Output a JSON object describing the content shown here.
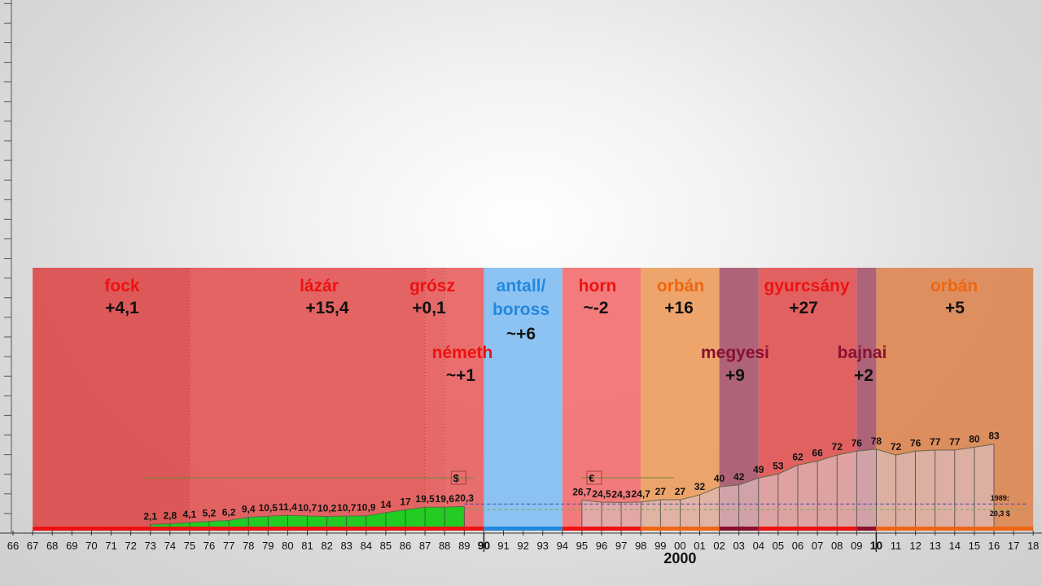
{
  "chart_data": {
    "type": "area",
    "x_range": [
      1966,
      2018
    ],
    "y_range": [
      0,
      100
    ],
    "governments": [
      {
        "name": "fock",
        "value": "+4,1",
        "start": 1967,
        "end": 1975,
        "color": "#dc5050",
        "name_color": "#ee1111"
      },
      {
        "name": "lázár",
        "value": "+15,4",
        "start": 1975,
        "end": 1987,
        "color": "#e35c5c",
        "name_color": "#ee1111"
      },
      {
        "name": "grósz",
        "value": "+0,1",
        "start": 1987,
        "end": 1988,
        "color": "#e56262",
        "name_color": "#ee1111"
      },
      {
        "name": "németh",
        "value": "~+1",
        "start": 1988,
        "end": 1990,
        "color": "#e86666",
        "name_color": "#ee1111"
      },
      {
        "name": "antall/\nboross",
        "value": "~+6",
        "start": 1990,
        "end": 1994,
        "color": "#87c0f2",
        "name_color": "#2288dd"
      },
      {
        "name": "horn",
        "value": "~-2",
        "start": 1994,
        "end": 1998,
        "color": "#f27474",
        "name_color": "#ee1111"
      },
      {
        "name": "orbán",
        "value": "+16",
        "start": 1998,
        "end": 2002,
        "color": "#eca064",
        "name_color": "#ee6611"
      },
      {
        "name": "megyesi",
        "value": "+9",
        "start": 2002,
        "end": 2004,
        "color": "#ab5c72",
        "name_color": "#8a1030"
      },
      {
        "name": "gyurcsány",
        "value": "+27",
        "start": 2004,
        "end": 2009,
        "color": "#e05a5a",
        "name_color": "#ee1111"
      },
      {
        "name": "bajnai",
        "value": "+2",
        "start": 2009,
        "end": 2010,
        "color": "#ab5c72",
        "name_color": "#8a1030"
      },
      {
        "name": "orbán",
        "value": "+5",
        "start": 2010,
        "end": 2018,
        "color": "#dd8a58",
        "name_color": "#ee6611"
      }
    ],
    "series": [
      {
        "name": "dollar",
        "fill": "#22cc22",
        "x": [
          1973,
          1974,
          1975,
          1976,
          1977,
          1978,
          1979,
          1980,
          1981,
          1982,
          1983,
          1984,
          1985,
          1986,
          1987,
          1988,
          1989
        ],
        "labels": [
          "2,1",
          "2,8",
          "4,1",
          "5,2",
          "6,2",
          "9,4",
          "10,5",
          "11,4",
          "10,7",
          "10,2",
          "10,7",
          "10,9",
          "14",
          "17",
          "19,5",
          "19,6",
          "20,3"
        ],
        "values": [
          2.1,
          2.8,
          4.1,
          5.2,
          6.2,
          9.4,
          10.5,
          11.4,
          10.7,
          10.2,
          10.7,
          10.9,
          14,
          17,
          19.5,
          19.6,
          20.3
        ]
      },
      {
        "name": "euro",
        "fill": "#dcb8b8",
        "x": [
          1995,
          1996,
          1997,
          1998,
          1999,
          2000,
          2001,
          2002,
          2003,
          2004,
          2005,
          2006,
          2007,
          2008,
          2009,
          2010,
          2011,
          2012,
          2013,
          2014,
          2015,
          2016
        ],
        "labels": [
          "26,7",
          "24,5",
          "24,3",
          "24,7",
          "27",
          "27",
          "32",
          "40",
          "42",
          "49",
          "53",
          "62",
          "66",
          "72",
          "76",
          "78",
          "72",
          "76",
          "77",
          "77",
          "80",
          "83"
        ],
        "values": [
          26.7,
          24.5,
          24.3,
          24.7,
          27,
          27,
          32,
          40,
          42,
          49,
          53,
          62,
          66,
          72,
          76,
          78,
          72,
          76,
          77,
          77,
          80,
          83
        ]
      }
    ],
    "currency_markers": [
      {
        "symbol": "$",
        "from": 1972.7,
        "to": 1989
      },
      {
        "symbol": "€",
        "from": 1995,
        "to": 1999.2
      }
    ],
    "reference_line": {
      "label_line1": "1989:",
      "label_line2": "20,3 $",
      "value": 20.3
    },
    "x_ticks": [
      "66",
      "67",
      "68",
      "69",
      "70",
      "71",
      "72",
      "73",
      "74",
      "75",
      "76",
      "77",
      "78",
      "79",
      "80",
      "81",
      "82",
      "83",
      "84",
      "85",
      "86",
      "87",
      "88",
      "89",
      "90",
      "91",
      "92",
      "93",
      "94",
      "95",
      "96",
      "97",
      "98",
      "99",
      "00",
      "01",
      "02",
      "03",
      "04",
      "05",
      "06",
      "07",
      "08",
      "09",
      "10",
      "11",
      "12",
      "13",
      "14",
      "15",
      "16",
      "17",
      "18"
    ],
    "bold_ticks": [
      "90",
      "10"
    ],
    "xlabel": "2000"
  }
}
